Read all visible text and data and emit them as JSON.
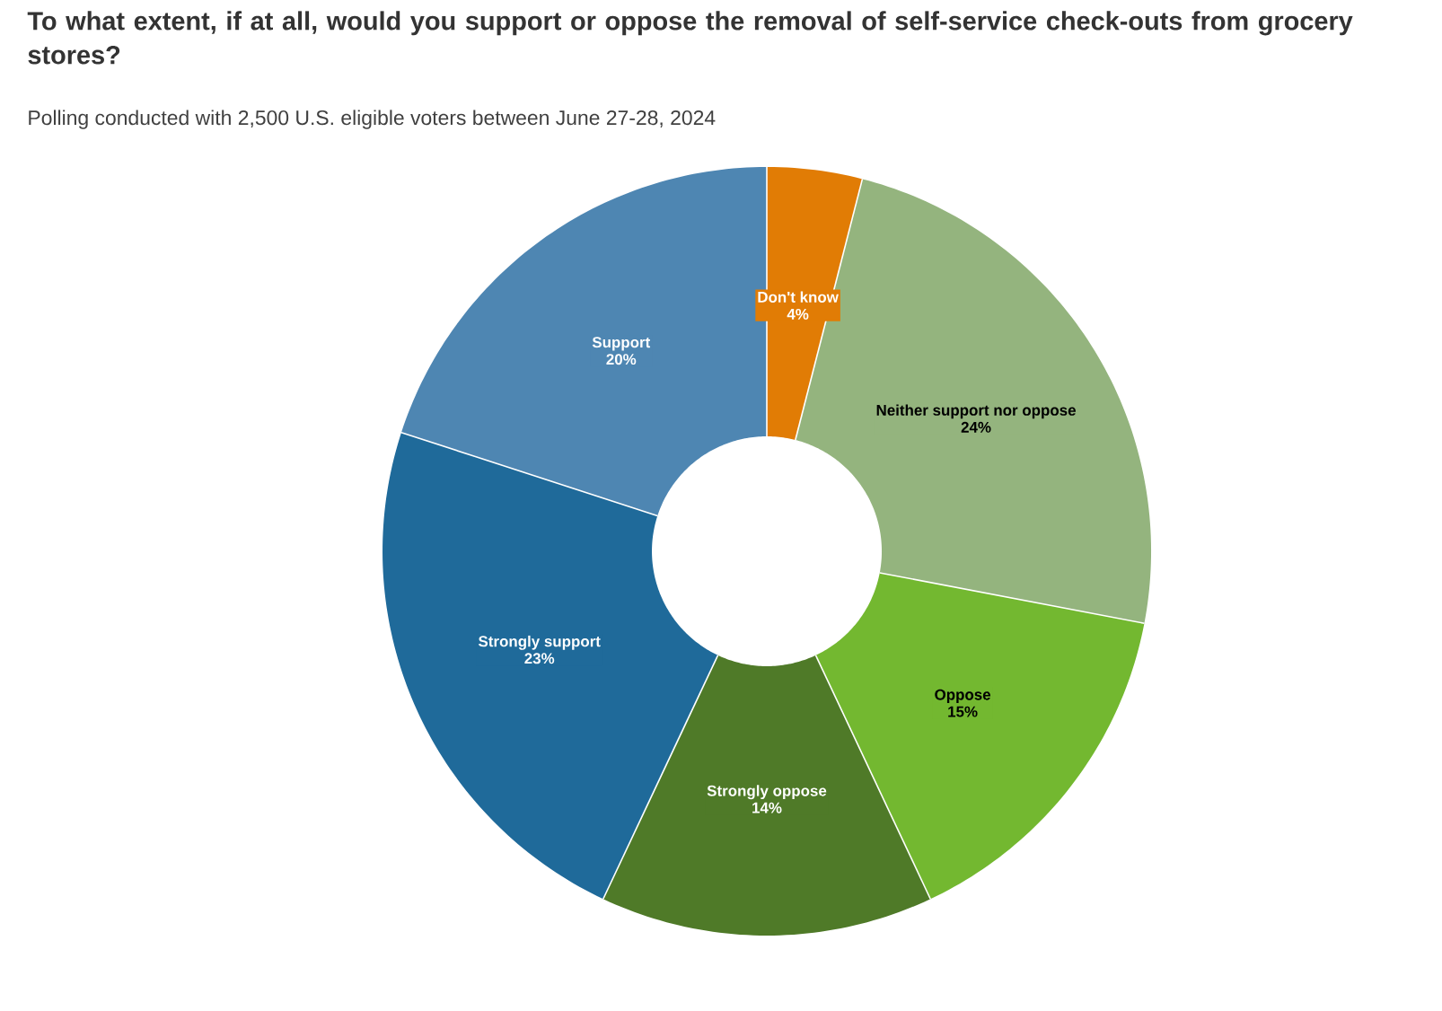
{
  "chart_data": {
    "type": "donut",
    "title": "To what extent, if at all, would you support or oppose the removal of self-service check-outs from grocery stores?",
    "subtitle": "Polling conducted with 2,500 U.S. eligible voters between June 27-28, 2024",
    "categories": [
      "Don't know",
      "Neither support nor oppose",
      "Oppose",
      "Strongly oppose",
      "Strongly support",
      "Support"
    ],
    "values": [
      4,
      24,
      15,
      14,
      23,
      20
    ],
    "value_labels": [
      "4%",
      "24%",
      "15%",
      "14%",
      "23%",
      "20%"
    ],
    "colors": [
      "#e17c05",
      "#94b47e",
      "#73b830",
      "#4f7a28",
      "#1f6a9a",
      "#4e86b2"
    ]
  }
}
